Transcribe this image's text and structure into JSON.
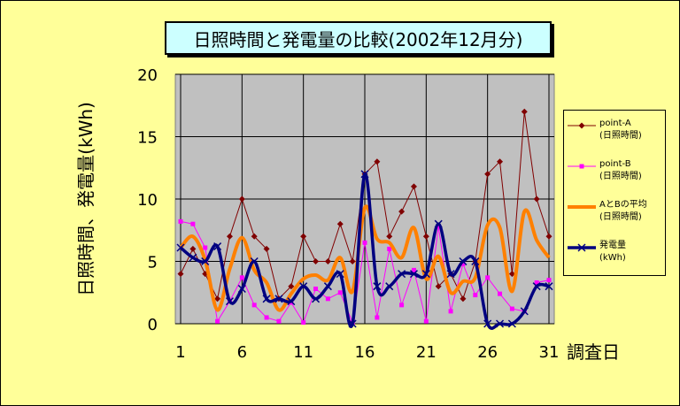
{
  "chart_data": {
    "type": "line",
    "title": "日照時間と発電量の比較(2002年12月分)",
    "xlabel": "調査日",
    "ylabel": "日照時間、発電量(kWh)",
    "x": [
      1,
      2,
      3,
      4,
      5,
      6,
      7,
      8,
      9,
      10,
      11,
      12,
      13,
      14,
      15,
      16,
      17,
      18,
      19,
      20,
      21,
      22,
      23,
      24,
      25,
      26,
      27,
      28,
      29,
      30,
      31
    ],
    "xticks": [
      "1",
      "6",
      "11",
      "16",
      "21",
      "26",
      "31"
    ],
    "yticks": [
      "0",
      "5",
      "10",
      "15",
      "20"
    ],
    "ylim": [
      0,
      20
    ],
    "grid": true,
    "legend_position": "right",
    "series": [
      {
        "name": "point-A\n(日照時間)",
        "color": "#800000",
        "marker": "diamond",
        "values": [
          4,
          6,
          4,
          2,
          7,
          10,
          7,
          6,
          2,
          3,
          7,
          5,
          5,
          8,
          5,
          12,
          13,
          7,
          9,
          11,
          7,
          3,
          4,
          2,
          5,
          12,
          13,
          4,
          17,
          10,
          7
        ]
      },
      {
        "name": "point-B\n(日照時間)",
        "color": "#ff00ff",
        "marker": "square",
        "values": [
          8.2,
          8,
          6.1,
          0.2,
          1.8,
          3.7,
          1.5,
          0.5,
          0.2,
          1.7,
          0.1,
          2.8,
          2,
          2.5,
          0.1,
          6.5,
          0.5,
          6,
          1.5,
          4.3,
          0.2,
          7.8,
          1,
          4.8,
          2.3,
          3.7,
          2.4,
          1.2,
          1,
          3.3,
          3.5
        ]
      },
      {
        "name": "AとBの平均\n(日照時間)",
        "color": "#ff8000",
        "marker": "none",
        "values": [
          6.1,
          7,
          5.1,
          1.1,
          4.4,
          6.9,
          4.3,
          3.3,
          1.1,
          2.4,
          3.6,
          3.9,
          3.5,
          5.3,
          2.6,
          9.3,
          6.8,
          6.5,
          5.3,
          7.7,
          3.6,
          5.4,
          2.5,
          3.4,
          3.7,
          7.9,
          7.7,
          2.6,
          9,
          6.7,
          5.3
        ]
      },
      {
        "name": "発電量\n(kWh)",
        "color": "#000080",
        "marker": "x",
        "values": [
          6.1,
          5.3,
          5,
          6.2,
          1.8,
          2.8,
          5,
          2,
          2,
          1.8,
          3,
          2,
          3,
          4,
          0,
          12,
          3,
          3,
          4,
          4,
          4,
          8,
          4,
          5,
          5,
          0,
          0,
          0,
          1,
          3,
          3
        ]
      }
    ]
  }
}
